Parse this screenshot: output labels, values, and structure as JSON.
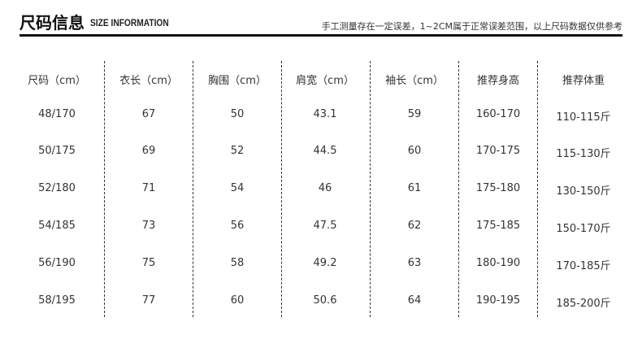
{
  "header": {
    "title": "尺码信息",
    "subtitle": "SIZE INFORMATION",
    "note": "手工测量存在一定误差，1~2CM属于正常误差范围，以上尺码数据仅供参考"
  },
  "table": {
    "columns": [
      "尺码（cm）",
      "衣长（cm）",
      "胸围（cm）",
      "肩宽（cm）",
      "袖长（cm）",
      "推荐身高",
      "推荐体重"
    ],
    "rows": [
      [
        "48/170",
        "67",
        "50",
        "43.1",
        "59",
        "160-170",
        "110-115斤"
      ],
      [
        "50/175",
        "69",
        "52",
        "44.5",
        "60",
        "170-175",
        "115-130斤"
      ],
      [
        "52/180",
        "71",
        "54",
        "46",
        "61",
        "175-180",
        "130-150斤"
      ],
      [
        "54/185",
        "73",
        "56",
        "47.5",
        "62",
        "175-185",
        "150-170斤"
      ],
      [
        "56/190",
        "75",
        "58",
        "49.2",
        "63",
        "180-190",
        "170-185斤"
      ],
      [
        "58/195",
        "77",
        "60",
        "50.6",
        "64",
        "190-195",
        "185-200斤"
      ]
    ]
  }
}
